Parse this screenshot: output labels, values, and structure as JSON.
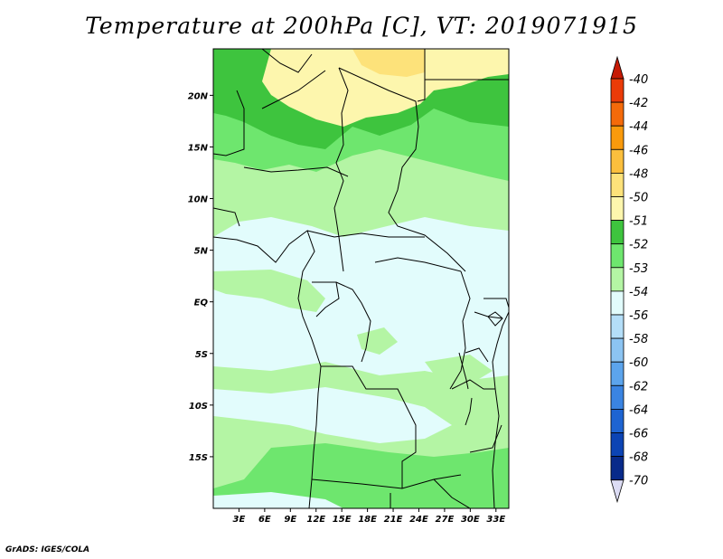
{
  "title": "Temperature at 200hPa [C], VT: 2019071915",
  "credit": "GrADS: IGES/COLA",
  "map": {
    "lon_range": [
      0,
      34.5
    ],
    "lat_range": [
      -20,
      24.5
    ],
    "lon_ticks": [
      {
        "value": 3,
        "label": "3E"
      },
      {
        "value": 6,
        "label": "6E"
      },
      {
        "value": 9,
        "label": "9E"
      },
      {
        "value": 12,
        "label": "12E"
      },
      {
        "value": 15,
        "label": "15E"
      },
      {
        "value": 18,
        "label": "18E"
      },
      {
        "value": 21,
        "label": "21E"
      },
      {
        "value": 24,
        "label": "24E"
      },
      {
        "value": 27,
        "label": "27E"
      },
      {
        "value": 30,
        "label": "30E"
      },
      {
        "value": 33,
        "label": "33E"
      }
    ],
    "lat_ticks": [
      {
        "value": 20,
        "label": "20N"
      },
      {
        "value": 15,
        "label": "15N"
      },
      {
        "value": 10,
        "label": "10N"
      },
      {
        "value": 5,
        "label": "5N"
      },
      {
        "value": 0,
        "label": "EQ"
      },
      {
        "value": -5,
        "label": "5S"
      },
      {
        "value": -10,
        "label": "10S"
      },
      {
        "value": -15,
        "label": "15S"
      }
    ]
  },
  "colorbar": {
    "levels": [
      {
        "label": "-40",
        "color": "#d81e05"
      },
      {
        "label": "-42",
        "color": "#ea3b08"
      },
      {
        "label": "-44",
        "color": "#f46a0a"
      },
      {
        "label": "-46",
        "color": "#f99a0c"
      },
      {
        "label": "-48",
        "color": "#fbbf3d"
      },
      {
        "label": "-50",
        "color": "#fde27a"
      },
      {
        "label": "-51",
        "color": "#fdf6ad"
      },
      {
        "label": "-52",
        "color": "#3ec43e"
      },
      {
        "label": "-53",
        "color": "#6ee66e"
      },
      {
        "label": "-54",
        "color": "#b4f5a4"
      },
      {
        "label": "-56",
        "color": "#e2fcfc"
      },
      {
        "label": "-58",
        "color": "#b4def8"
      },
      {
        "label": "-60",
        "color": "#8cc4f2"
      },
      {
        "label": "-62",
        "color": "#5ca4ec"
      },
      {
        "label": "-64",
        "color": "#3a84e2"
      },
      {
        "label": "-66",
        "color": "#1e64d2"
      },
      {
        "label": "-68",
        "color": "#0c44b4"
      },
      {
        "label": "-70",
        "color": "#082a8a"
      }
    ],
    "top_color": "#c61a05",
    "bottom_color": "#071866",
    "under_color": "#dcdcf4"
  }
}
